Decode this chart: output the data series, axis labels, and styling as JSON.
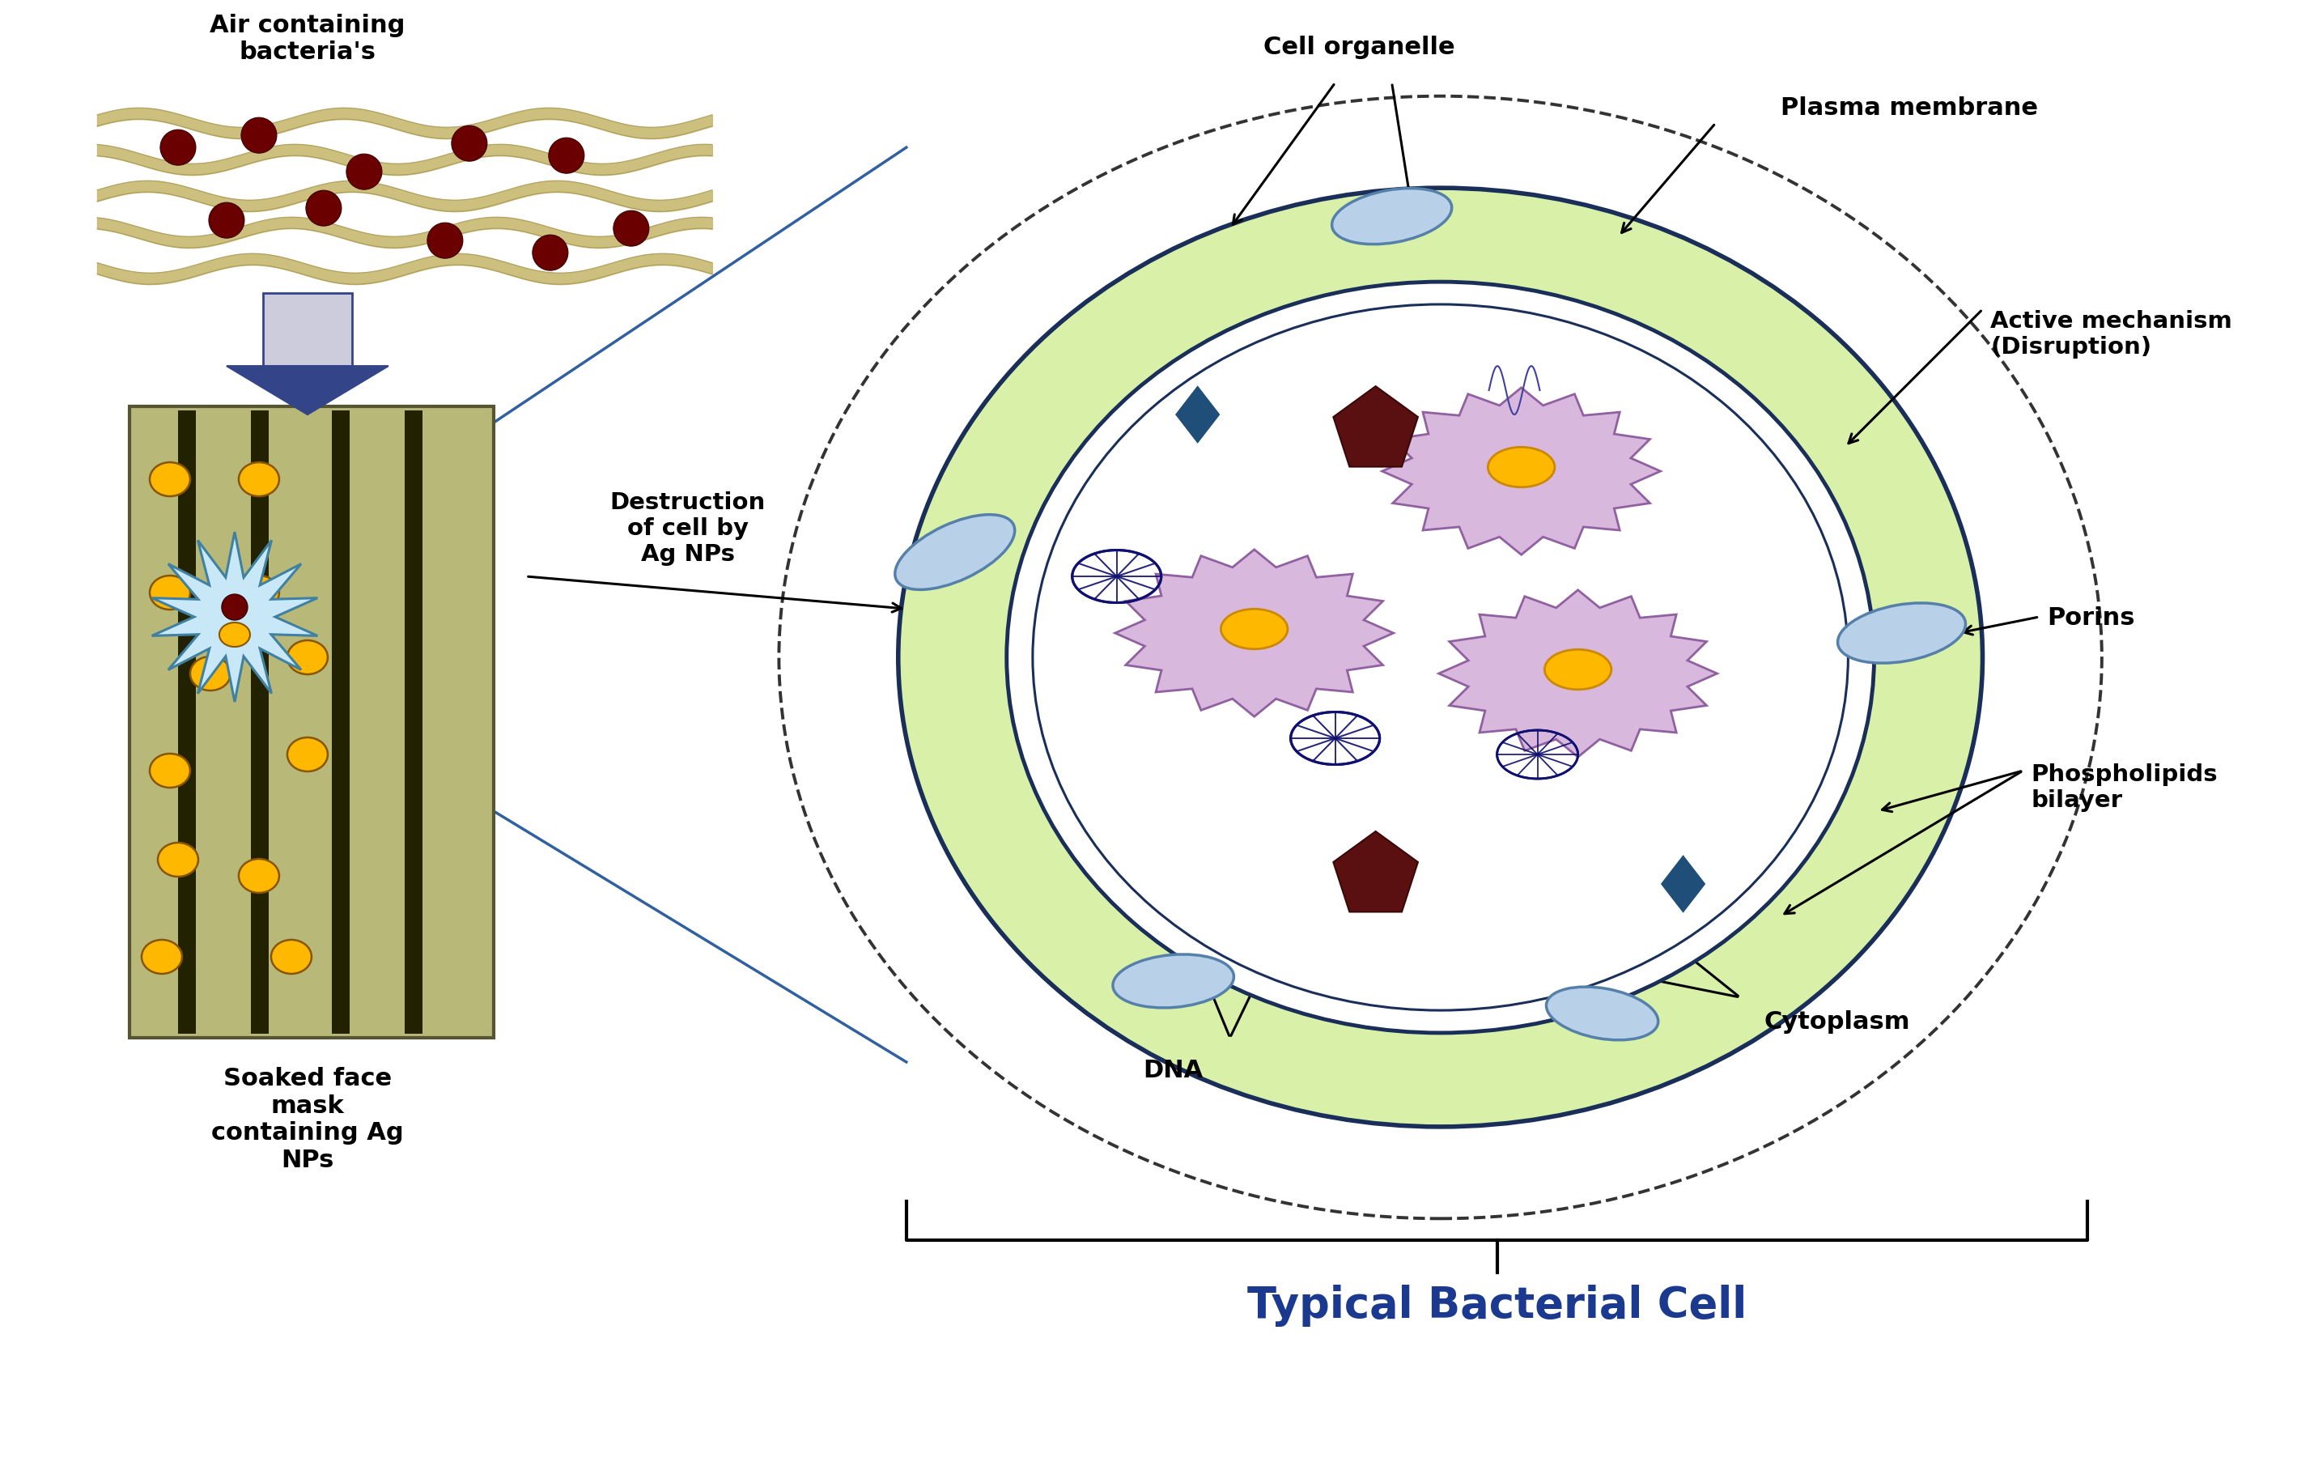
{
  "title": "Typical Bacterial Cell",
  "title_color": "#1B3A8F",
  "title_fontsize": 38,
  "bg_color": "#ffffff",
  "labels": {
    "air_containing": "Air containing\nbacteria's",
    "soaked_face_mask": "Soaked face\nmask\ncontaining Ag\nNPs",
    "destruction": "Destruction\nof cell by\nAg NPs",
    "cell_organelle": "Cell organelle",
    "plasma_membrane": "Plasma membrane",
    "active_mechanism": "Active mechanism\n(Disruption)",
    "porins": "Porins",
    "phospholipids": "Phospholipids\nbilayer",
    "cytoplasm": "Cytoplasm",
    "dna": "DNA"
  },
  "colors": {
    "outer_cell_fill": "#d8f0a8",
    "outer_cell_border": "#1a2e5a",
    "inner_cell_fill": "#ffffff",
    "dashed_border": "#444444",
    "diamond_blue": "#1F4E79",
    "pentagon_dark": "#5a1010",
    "ellipse_fill": "#aac4de",
    "bacteria_fill": "#d8b8dc",
    "bacteria_center": "#FFB800",
    "dna_blue": "#000080",
    "mask_fill": "#9a9860",
    "mask_stripe": "#222200",
    "mask_light": "#b8b878",
    "np_yellow": "#FFB800",
    "arrow_color": "#222222",
    "connector_blue": "#3060A0",
    "wave_color": "#c8b870",
    "wave_outline": "#a09050",
    "bacteria_dot": "#6B0000",
    "burst_fill": "#c8e8f8",
    "burst_border": "#4080a0",
    "down_arrow_fill": "#aaaacc",
    "down_arrow_border": "#334488"
  }
}
